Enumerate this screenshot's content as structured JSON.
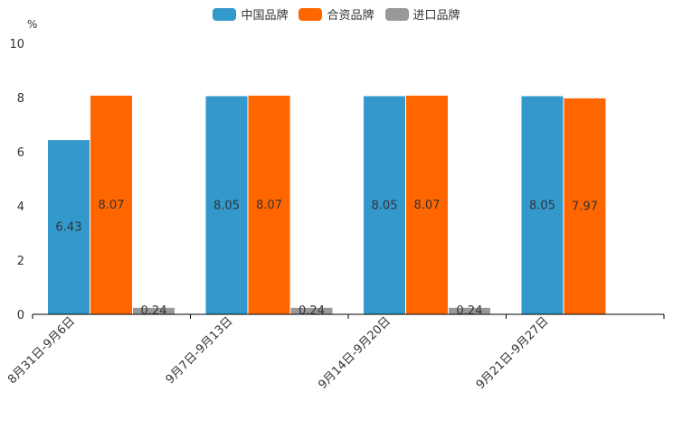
{
  "chart_data": {
    "type": "bar",
    "ylabel": "%",
    "ylim": [
      0,
      10
    ],
    "yticks": [
      0,
      2,
      4,
      6,
      8,
      10
    ],
    "categories": [
      "8月31日-9月6日",
      "9月7日-9月13日",
      "9月14日-9月20日",
      "9月21日-9月27日"
    ],
    "series": [
      {
        "name": "中国品牌",
        "color": "#3398CC",
        "values": [
          6.43,
          8.05,
          8.05,
          8.05
        ],
        "labels": [
          "6.43",
          "8.05",
          "8.05",
          "8.05"
        ]
      },
      {
        "name": "合资品牌",
        "color": "#FF6600",
        "values": [
          8.07,
          8.07,
          8.07,
          7.97
        ],
        "labels": [
          "8.07",
          "8.07",
          "8.07",
          "7.97"
        ]
      },
      {
        "name": "进口品牌",
        "color": "#999999",
        "values": [
          0.24,
          0.24,
          0.24,
          null
        ],
        "labels": [
          "0.24",
          "0.24",
          "0.24",
          null
        ]
      }
    ],
    "legend_position": "top-center"
  }
}
